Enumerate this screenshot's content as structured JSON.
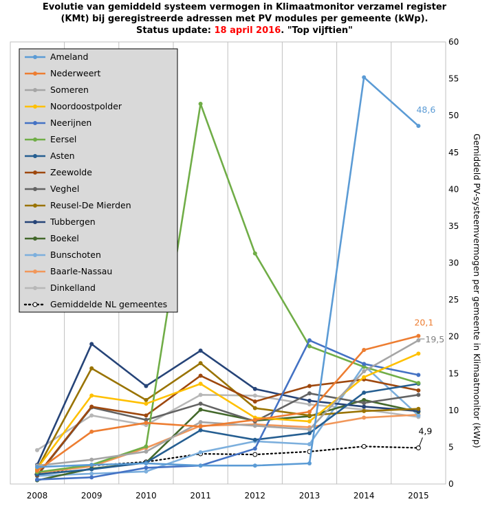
{
  "title": {
    "line1": "Evolutie van gemiddeld systeem vermogen in Klimaatmonitor  verzamel register",
    "line2": "(KMt) bij geregistreerde adressen met PV modules per gemeente (kWp).",
    "line3_prefix": "Status update: ",
    "line3_date": "18 april 2016",
    "line3_suffix": ". \"Top vijftien\""
  },
  "chart_data": {
    "type": "line",
    "categories": [
      "2008",
      "2009",
      "2010",
      "2011",
      "2012",
      "2013",
      "2014",
      "2015"
    ],
    "ylabel": "Gemiddeld  PV-systeemvermogen  per gemeente in Klimaatmonitor  (kWp)",
    "ylim": [
      0,
      60
    ],
    "yticks": [
      0,
      5,
      10,
      15,
      20,
      25,
      30,
      35,
      40,
      45,
      50,
      55,
      60
    ],
    "y_axis_side": "right",
    "grid": "vertical",
    "legend_position": "top-left",
    "series": [
      {
        "name": "Ameland",
        "color": "#5b9bd5",
        "values": [
          2.3,
          2.6,
          2.8,
          2.5,
          2.5,
          2.8,
          55.2,
          48.6
        ]
      },
      {
        "name": "Nederweert",
        "color": "#ed7d31",
        "values": [
          1.8,
          7.1,
          8.3,
          7.8,
          8.7,
          9.8,
          18.2,
          20.1
        ]
      },
      {
        "name": "Someren",
        "color": "#a5a5a5",
        "values": [
          2.5,
          3.3,
          4.4,
          8.4,
          7.9,
          7.4,
          15.3,
          19.5
        ]
      },
      {
        "name": "Noordoostpolder",
        "color": "#ffc000",
        "values": [
          2.1,
          12.0,
          10.9,
          13.6,
          9.0,
          8.5,
          14.5,
          17.7
        ]
      },
      {
        "name": "Neerijnen",
        "color": "#4472c4",
        "values": [
          0.6,
          0.9,
          2.2,
          2.5,
          4.8,
          19.5,
          16.3,
          14.8
        ]
      },
      {
        "name": "Eersel",
        "color": "#70ad47",
        "values": [
          1.6,
          2.6,
          5.1,
          51.6,
          31.3,
          18.7,
          15.9,
          13.7
        ]
      },
      {
        "name": "Asten",
        "color": "#255e91",
        "values": [
          1.3,
          2.0,
          2.9,
          7.3,
          6.0,
          6.9,
          12.4,
          13.6
        ]
      },
      {
        "name": "Zeewolde",
        "color": "#9e480e",
        "values": [
          1.2,
          10.5,
          9.3,
          14.7,
          11.2,
          13.3,
          14.2,
          12.7
        ]
      },
      {
        "name": "Veghel",
        "color": "#636363",
        "values": [
          1.1,
          10.4,
          8.7,
          10.9,
          8.5,
          12.3,
          11.0,
          12.1
        ]
      },
      {
        "name": "Reusel-De Mierden",
        "color": "#997300",
        "values": [
          2.0,
          15.7,
          11.4,
          16.4,
          10.3,
          9.3,
          9.9,
          10.2
        ]
      },
      {
        "name": "Tubbergen",
        "color": "#264478",
        "values": [
          2.6,
          19.0,
          13.3,
          18.1,
          12.9,
          11.3,
          10.5,
          9.9
        ]
      },
      {
        "name": "Boekel",
        "color": "#43682b",
        "values": [
          0.5,
          2.1,
          2.9,
          10.1,
          8.6,
          9.2,
          11.4,
          9.8
        ]
      },
      {
        "name": "Bunschoten",
        "color": "#7cafdd",
        "values": [
          1.1,
          1.4,
          1.7,
          4.3,
          5.8,
          5.4,
          16.1,
          9.3
        ]
      },
      {
        "name": "Baarle-Nassau",
        "color": "#f1975a",
        "values": [
          1.5,
          2.4,
          4.9,
          7.9,
          8.1,
          7.7,
          9.0,
          9.4
        ]
      },
      {
        "name": "Dinkelland",
        "color": "#b7b7b7",
        "values": [
          4.6,
          9.3,
          8.0,
          12.1,
          12.0,
          10.8,
          10.1,
          9.1
        ]
      },
      {
        "name": "Gemiddelde NL gemeentes",
        "color": "#000000",
        "dotted": true,
        "values": [
          1.3,
          2.5,
          3.0,
          4.1,
          4.0,
          4.4,
          5.1,
          4.9
        ]
      }
    ],
    "annotations": [
      {
        "text": "48,6",
        "color": "#5b9bd5",
        "series": "Ameland",
        "x": "2015",
        "y": 48.6
      },
      {
        "text": "20,1",
        "color": "#ed7d31",
        "series": "Nederweert",
        "x": "2015",
        "y": 20.1
      },
      {
        "text": "19,5",
        "color": "#7f7f7f",
        "series": "Someren",
        "x": "2015",
        "y": 19.5
      },
      {
        "text": "4,9",
        "color": "#000000",
        "series": "Gemiddelde NL gemeentes",
        "x": "2015",
        "y": 4.9
      }
    ]
  }
}
